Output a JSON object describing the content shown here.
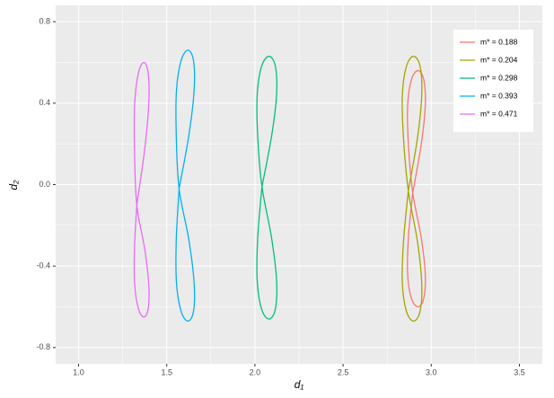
{
  "chart_data": {
    "type": "line",
    "x_label": "d₁",
    "y_label": "d₂",
    "xlim": [
      0.87,
      3.63
    ],
    "ylim": [
      -0.88,
      0.88
    ],
    "xticks": [
      {
        "value": 1,
        "label": "1.0"
      },
      1.5,
      {
        "value": 2,
        "label": "2.0"
      },
      2.5,
      {
        "value": 3,
        "label": "3.0"
      },
      3.5
    ],
    "yticks": [
      -0.8,
      -0.4,
      {
        "value": 0,
        "label": "0.0"
      },
      0.4,
      0.8
    ],
    "grid": true,
    "minor_grid": true,
    "legend": "top-right",
    "series": [
      {
        "name": "m* = 0.188",
        "color": "#F8766D",
        "x": [
          2.895,
          2.942,
          2.966,
          2.958,
          2.925,
          2.887,
          2.866,
          2.871,
          2.895,
          2.942,
          2.966,
          2.958,
          2.925,
          2.887,
          2.866,
          2.871,
          2.895
        ],
        "y": [
          -0.04,
          0.19,
          0.384,
          0.514,
          0.56,
          0.514,
          0.384,
          0.19,
          -0.04,
          -0.254,
          -0.436,
          -0.557,
          -0.6,
          -0.557,
          -0.436,
          -0.254,
          -0.04
        ]
      },
      {
        "name": "m* = 0.204",
        "color": "#A3A500",
        "x": [
          2.87,
          2.921,
          2.946,
          2.937,
          2.9,
          2.859,
          2.836,
          2.843,
          2.87,
          2.921,
          2.946,
          2.937,
          2.9,
          2.859,
          2.836,
          2.843,
          2.87
        ],
        "y": [
          -0.03,
          0.223,
          0.437,
          0.58,
          0.63,
          0.58,
          0.437,
          0.223,
          -0.03,
          -0.275,
          -0.482,
          -0.621,
          -0.67,
          -0.621,
          -0.482,
          -0.275,
          -0.03
        ]
      },
      {
        "name": "m* = 0.298",
        "color": "#00BF7D",
        "x": [
          2.04,
          2.094,
          2.123,
          2.116,
          2.08,
          2.038,
          2.013,
          2.016,
          2.04,
          2.094,
          2.123,
          2.116,
          2.08,
          2.038,
          2.013,
          2.016,
          2.04
        ],
        "y": [
          -0.01,
          0.235,
          0.442,
          0.581,
          0.63,
          0.581,
          0.442,
          0.235,
          -0.01,
          -0.259,
          -0.47,
          -0.611,
          -0.66,
          -0.611,
          -0.47,
          -0.259,
          -0.01
        ]
      },
      {
        "name": "m* = 0.393",
        "color": "#00B0F6",
        "x": [
          1.57,
          1.625,
          1.655,
          1.652,
          1.62,
          1.581,
          1.555,
          1.554,
          1.57,
          1.625,
          1.655,
          1.652,
          1.62,
          1.581,
          1.555,
          1.554,
          1.57
        ],
        "y": [
          -0.02,
          0.24,
          0.461,
          0.608,
          0.66,
          0.608,
          0.461,
          0.24,
          -0.02,
          -0.269,
          -0.48,
          -0.621,
          -0.67,
          -0.621,
          -0.48,
          -0.269,
          -0.02
        ]
      },
      {
        "name": "m* = 0.471",
        "color": "#E76BF3",
        "x": [
          1.33,
          1.374,
          1.398,
          1.395,
          1.37,
          1.339,
          1.318,
          1.317,
          1.33,
          1.374,
          1.398,
          1.395,
          1.37,
          1.339,
          1.318,
          1.317,
          1.33
        ],
        "y": [
          -0.1,
          0.168,
          0.395,
          0.547,
          0.6,
          0.547,
          0.395,
          0.168,
          -0.1,
          -0.311,
          -0.489,
          -0.608,
          -0.65,
          -0.608,
          -0.489,
          -0.311,
          -0.1
        ]
      }
    ]
  }
}
